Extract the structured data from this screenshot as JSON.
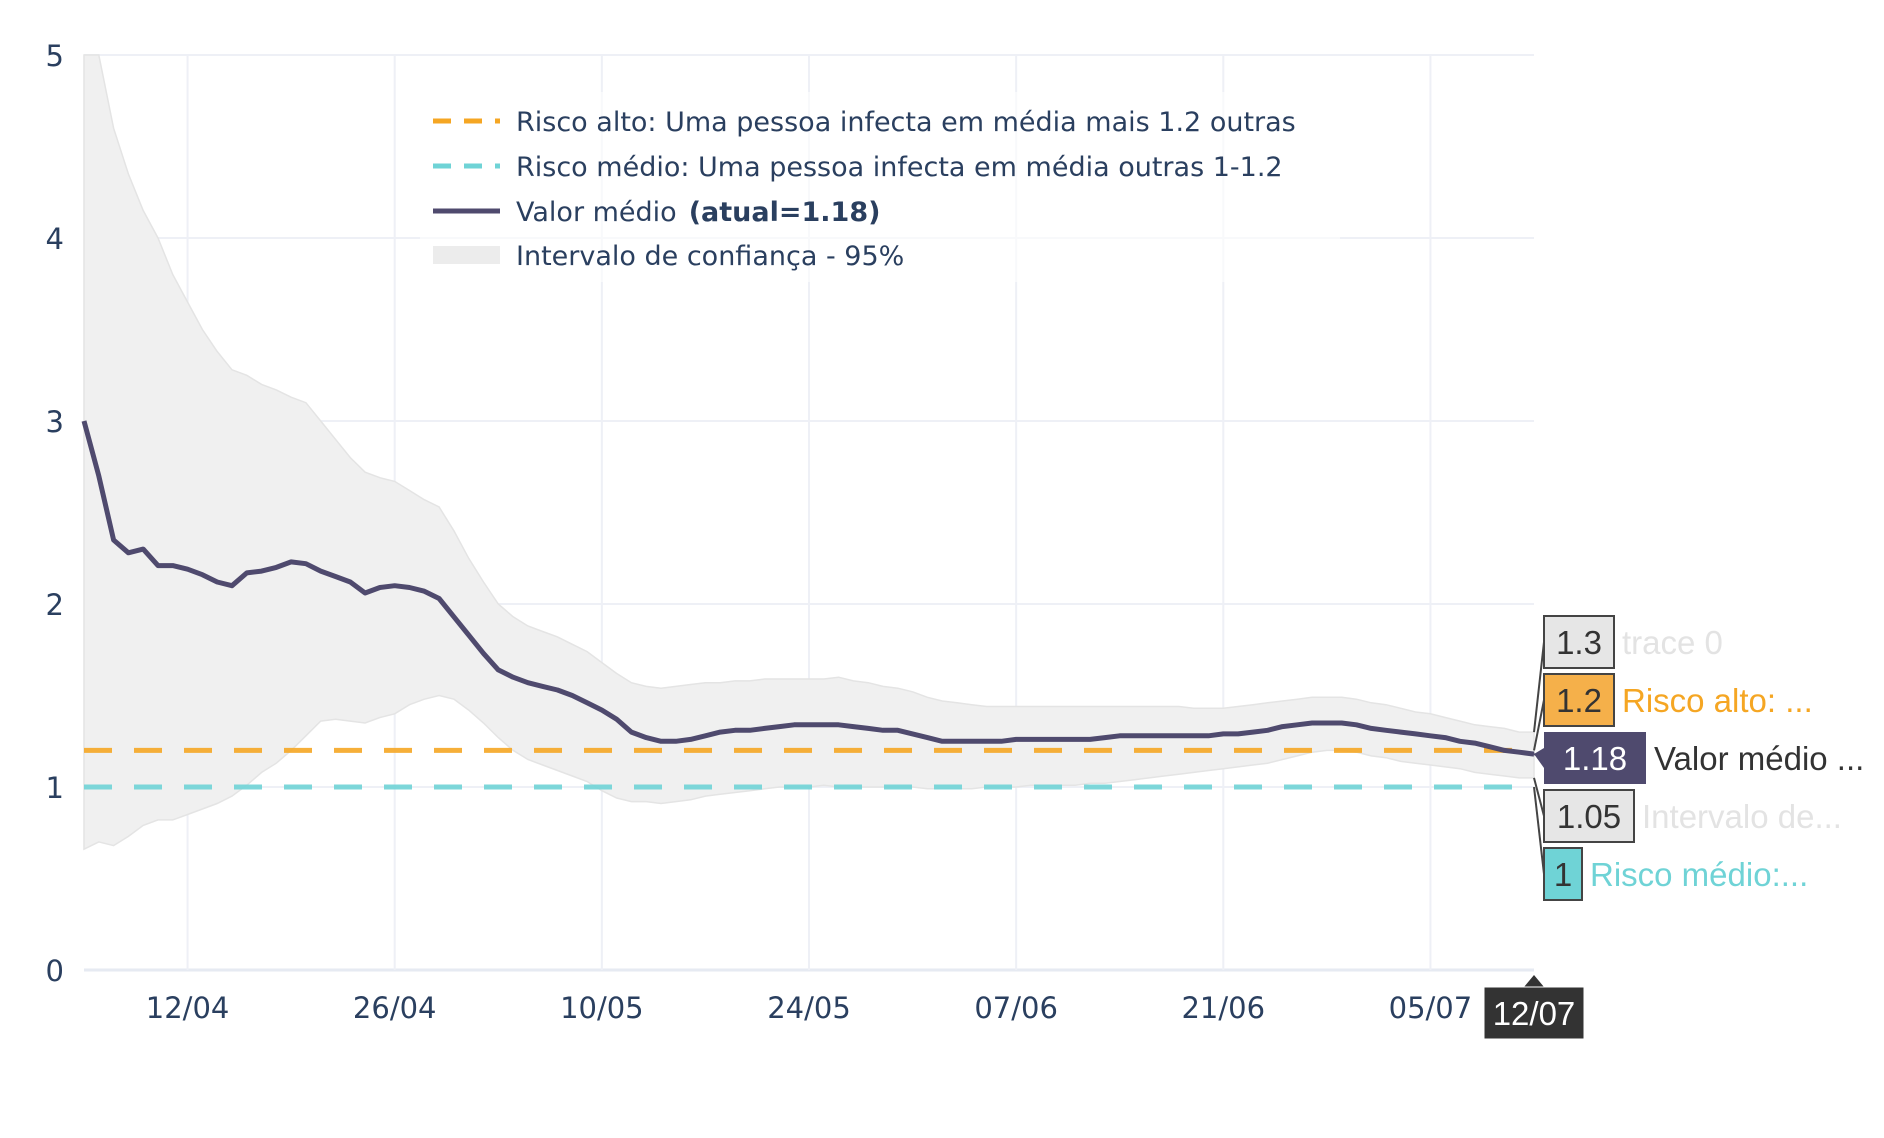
{
  "chart_data": {
    "type": "line",
    "x_ticks": [
      "12/04",
      "26/04",
      "10/05",
      "24/05",
      "07/06",
      "21/06",
      "05/07"
    ],
    "y_ticks": [
      "0",
      "1",
      "2",
      "3",
      "4",
      "5"
    ],
    "ylim": [
      0,
      5
    ],
    "x_start": "2020-04-05",
    "x_end": "2020-07-12",
    "grid": true,
    "legend_placement": "top",
    "series": [
      {
        "name": "Risco alto: Uma pessoa infecta em média mais 1.2 outras",
        "style": "dashed",
        "color": "#f5a623",
        "values": [
          [
            0,
            1.2
          ],
          [
            98,
            1.2
          ]
        ]
      },
      {
        "name": "Risco médio: Uma pessoa infecta em média outras 1-1.2",
        "style": "dashed",
        "color": "#6fd3d6",
        "values": [
          [
            0,
            1.0
          ],
          [
            98,
            1.0
          ]
        ]
      },
      {
        "name": "Valor médio",
        "name_suffix": "(atual=1.18)",
        "style": "solid",
        "color": "#4f4a6e",
        "values": [
          [
            0,
            3.0
          ],
          [
            1,
            2.7
          ],
          [
            2,
            2.35
          ],
          [
            3,
            2.28
          ],
          [
            4,
            2.3
          ],
          [
            5,
            2.21
          ],
          [
            6,
            2.21
          ],
          [
            7,
            2.19
          ],
          [
            8,
            2.16
          ],
          [
            9,
            2.12
          ],
          [
            10,
            2.1
          ],
          [
            11,
            2.17
          ],
          [
            12,
            2.18
          ],
          [
            13,
            2.2
          ],
          [
            14,
            2.23
          ],
          [
            15,
            2.22
          ],
          [
            16,
            2.18
          ],
          [
            17,
            2.15
          ],
          [
            18,
            2.12
          ],
          [
            19,
            2.06
          ],
          [
            20,
            2.09
          ],
          [
            21,
            2.1
          ],
          [
            22,
            2.09
          ],
          [
            23,
            2.07
          ],
          [
            24,
            2.03
          ],
          [
            25,
            1.93
          ],
          [
            26,
            1.83
          ],
          [
            27,
            1.73
          ],
          [
            28,
            1.64
          ],
          [
            29,
            1.6
          ],
          [
            30,
            1.57
          ],
          [
            31,
            1.55
          ],
          [
            32,
            1.53
          ],
          [
            33,
            1.5
          ],
          [
            34,
            1.46
          ],
          [
            35,
            1.42
          ],
          [
            36,
            1.37
          ],
          [
            37,
            1.3
          ],
          [
            38,
            1.27
          ],
          [
            39,
            1.25
          ],
          [
            40,
            1.25
          ],
          [
            41,
            1.26
          ],
          [
            42,
            1.28
          ],
          [
            43,
            1.3
          ],
          [
            44,
            1.31
          ],
          [
            45,
            1.31
          ],
          [
            46,
            1.32
          ],
          [
            47,
            1.33
          ],
          [
            48,
            1.34
          ],
          [
            49,
            1.34
          ],
          [
            50,
            1.34
          ],
          [
            51,
            1.34
          ],
          [
            52,
            1.33
          ],
          [
            53,
            1.32
          ],
          [
            54,
            1.31
          ],
          [
            55,
            1.31
          ],
          [
            56,
            1.29
          ],
          [
            57,
            1.27
          ],
          [
            58,
            1.25
          ],
          [
            59,
            1.25
          ],
          [
            60,
            1.25
          ],
          [
            61,
            1.25
          ],
          [
            62,
            1.25
          ],
          [
            63,
            1.26
          ],
          [
            64,
            1.26
          ],
          [
            65,
            1.26
          ],
          [
            66,
            1.26
          ],
          [
            67,
            1.26
          ],
          [
            68,
            1.26
          ],
          [
            69,
            1.27
          ],
          [
            70,
            1.28
          ],
          [
            71,
            1.28
          ],
          [
            72,
            1.28
          ],
          [
            73,
            1.28
          ],
          [
            74,
            1.28
          ],
          [
            75,
            1.28
          ],
          [
            76,
            1.28
          ],
          [
            77,
            1.29
          ],
          [
            78,
            1.29
          ],
          [
            79,
            1.3
          ],
          [
            80,
            1.31
          ],
          [
            81,
            1.33
          ],
          [
            82,
            1.34
          ],
          [
            83,
            1.35
          ],
          [
            84,
            1.35
          ],
          [
            85,
            1.35
          ],
          [
            86,
            1.34
          ],
          [
            87,
            1.32
          ],
          [
            88,
            1.31
          ],
          [
            89,
            1.3
          ],
          [
            90,
            1.29
          ],
          [
            91,
            1.28
          ],
          [
            92,
            1.27
          ],
          [
            93,
            1.25
          ],
          [
            94,
            1.24
          ],
          [
            95,
            1.22
          ],
          [
            96,
            1.2
          ],
          [
            97,
            1.19
          ],
          [
            98,
            1.18
          ]
        ]
      },
      {
        "name": "Intervalo de confiança - 95%",
        "style": "band",
        "color": "#f0f0f0",
        "upper": [
          [
            0,
            5.0
          ],
          [
            1,
            5.0
          ],
          [
            2,
            4.6
          ],
          [
            3,
            4.35
          ],
          [
            4,
            4.15
          ],
          [
            5,
            4.0
          ],
          [
            6,
            3.8
          ],
          [
            7,
            3.65
          ],
          [
            8,
            3.5
          ],
          [
            9,
            3.38
          ],
          [
            10,
            3.28
          ],
          [
            11,
            3.25
          ],
          [
            12,
            3.2
          ],
          [
            13,
            3.17
          ],
          [
            14,
            3.13
          ],
          [
            15,
            3.1
          ],
          [
            16,
            3.0
          ],
          [
            17,
            2.9
          ],
          [
            18,
            2.8
          ],
          [
            19,
            2.72
          ],
          [
            20,
            2.69
          ],
          [
            21,
            2.67
          ],
          [
            22,
            2.62
          ],
          [
            23,
            2.57
          ],
          [
            24,
            2.53
          ],
          [
            25,
            2.4
          ],
          [
            26,
            2.25
          ],
          [
            27,
            2.12
          ],
          [
            28,
            2.0
          ],
          [
            29,
            1.93
          ],
          [
            30,
            1.88
          ],
          [
            31,
            1.85
          ],
          [
            32,
            1.82
          ],
          [
            33,
            1.78
          ],
          [
            34,
            1.74
          ],
          [
            35,
            1.68
          ],
          [
            36,
            1.62
          ],
          [
            37,
            1.57
          ],
          [
            38,
            1.55
          ],
          [
            39,
            1.54
          ],
          [
            40,
            1.55
          ],
          [
            41,
            1.56
          ],
          [
            42,
            1.57
          ],
          [
            43,
            1.57
          ],
          [
            44,
            1.58
          ],
          [
            45,
            1.58
          ],
          [
            46,
            1.59
          ],
          [
            47,
            1.59
          ],
          [
            48,
            1.59
          ],
          [
            49,
            1.59
          ],
          [
            50,
            1.59
          ],
          [
            51,
            1.6
          ],
          [
            52,
            1.58
          ],
          [
            53,
            1.57
          ],
          [
            54,
            1.55
          ],
          [
            55,
            1.54
          ],
          [
            56,
            1.52
          ],
          [
            57,
            1.49
          ],
          [
            58,
            1.47
          ],
          [
            59,
            1.46
          ],
          [
            60,
            1.45
          ],
          [
            61,
            1.44
          ],
          [
            62,
            1.44
          ],
          [
            63,
            1.44
          ],
          [
            64,
            1.44
          ],
          [
            65,
            1.44
          ],
          [
            66,
            1.44
          ],
          [
            67,
            1.44
          ],
          [
            68,
            1.44
          ],
          [
            69,
            1.44
          ],
          [
            70,
            1.44
          ],
          [
            71,
            1.44
          ],
          [
            72,
            1.44
          ],
          [
            73,
            1.44
          ],
          [
            74,
            1.44
          ],
          [
            75,
            1.43
          ],
          [
            76,
            1.43
          ],
          [
            77,
            1.43
          ],
          [
            78,
            1.44
          ],
          [
            79,
            1.45
          ],
          [
            80,
            1.46
          ],
          [
            81,
            1.47
          ],
          [
            82,
            1.48
          ],
          [
            83,
            1.49
          ],
          [
            84,
            1.49
          ],
          [
            85,
            1.49
          ],
          [
            86,
            1.48
          ],
          [
            87,
            1.46
          ],
          [
            88,
            1.45
          ],
          [
            89,
            1.43
          ],
          [
            90,
            1.41
          ],
          [
            91,
            1.4
          ],
          [
            92,
            1.38
          ],
          [
            93,
            1.36
          ],
          [
            94,
            1.34
          ],
          [
            95,
            1.33
          ],
          [
            96,
            1.32
          ],
          [
            97,
            1.3
          ],
          [
            98,
            1.3
          ]
        ],
        "lower": [
          [
            0,
            0.66
          ],
          [
            1,
            0.7
          ],
          [
            2,
            0.68
          ],
          [
            3,
            0.73
          ],
          [
            4,
            0.79
          ],
          [
            5,
            0.82
          ],
          [
            6,
            0.82
          ],
          [
            7,
            0.85
          ],
          [
            8,
            0.88
          ],
          [
            9,
            0.91
          ],
          [
            10,
            0.95
          ],
          [
            11,
            1.01
          ],
          [
            12,
            1.08
          ],
          [
            13,
            1.13
          ],
          [
            14,
            1.2
          ],
          [
            15,
            1.28
          ],
          [
            16,
            1.36
          ],
          [
            17,
            1.37
          ],
          [
            18,
            1.36
          ],
          [
            19,
            1.35
          ],
          [
            20,
            1.38
          ],
          [
            21,
            1.4
          ],
          [
            22,
            1.45
          ],
          [
            23,
            1.48
          ],
          [
            24,
            1.5
          ],
          [
            25,
            1.48
          ],
          [
            26,
            1.42
          ],
          [
            27,
            1.35
          ],
          [
            28,
            1.27
          ],
          [
            29,
            1.2
          ],
          [
            30,
            1.15
          ],
          [
            31,
            1.12
          ],
          [
            32,
            1.09
          ],
          [
            33,
            1.06
          ],
          [
            34,
            1.03
          ],
          [
            35,
            0.98
          ],
          [
            36,
            0.94
          ],
          [
            37,
            0.92
          ],
          [
            38,
            0.92
          ],
          [
            39,
            0.91
          ],
          [
            40,
            0.92
          ],
          [
            41,
            0.93
          ],
          [
            42,
            0.95
          ],
          [
            43,
            0.96
          ],
          [
            44,
            0.97
          ],
          [
            45,
            0.98
          ],
          [
            46,
            0.99
          ],
          [
            47,
            1.0
          ],
          [
            48,
            1.0
          ],
          [
            49,
            1.0
          ],
          [
            50,
            1.01
          ],
          [
            51,
            1.0
          ],
          [
            52,
            1.0
          ],
          [
            53,
            1.0
          ],
          [
            54,
            1.0
          ],
          [
            55,
            1.0
          ],
          [
            56,
            1.0
          ],
          [
            57,
            0.99
          ],
          [
            58,
            0.99
          ],
          [
            59,
            0.99
          ],
          [
            60,
            0.99
          ],
          [
            61,
            1.0
          ],
          [
            62,
            1.0
          ],
          [
            63,
            1.0
          ],
          [
            64,
            1.01
          ],
          [
            65,
            1.01
          ],
          [
            66,
            1.01
          ],
          [
            67,
            1.01
          ],
          [
            68,
            1.02
          ],
          [
            69,
            1.02
          ],
          [
            70,
            1.03
          ],
          [
            71,
            1.04
          ],
          [
            72,
            1.05
          ],
          [
            73,
            1.06
          ],
          [
            74,
            1.07
          ],
          [
            75,
            1.08
          ],
          [
            76,
            1.09
          ],
          [
            77,
            1.1
          ],
          [
            78,
            1.11
          ],
          [
            79,
            1.12
          ],
          [
            80,
            1.13
          ],
          [
            81,
            1.15
          ],
          [
            82,
            1.17
          ],
          [
            83,
            1.19
          ],
          [
            84,
            1.2
          ],
          [
            85,
            1.2
          ],
          [
            86,
            1.19
          ],
          [
            87,
            1.17
          ],
          [
            88,
            1.16
          ],
          [
            89,
            1.14
          ],
          [
            90,
            1.13
          ],
          [
            91,
            1.12
          ],
          [
            92,
            1.11
          ],
          [
            93,
            1.1
          ],
          [
            94,
            1.08
          ],
          [
            95,
            1.07
          ],
          [
            96,
            1.06
          ],
          [
            97,
            1.05
          ],
          [
            98,
            1.05
          ]
        ]
      }
    ],
    "hover": {
      "x_label": "12/07",
      "items": [
        {
          "value": "1.3",
          "label": "trace 0",
          "bg": "#e6e6e6",
          "text_color": "#333333",
          "label_color": "#e3e3e3",
          "y": 1.3,
          "bordered": true
        },
        {
          "value": "1.2",
          "label": "Risco alto: ...",
          "bg": "#f5b04a",
          "text_color": "#333333",
          "label_color": "#f5a623",
          "y": 1.2,
          "bordered": true
        },
        {
          "value": "1.18",
          "label": "Valor médio ...",
          "bg": "#4f4a6e",
          "text_color": "#ffffff",
          "label_color": "#333333",
          "y": 1.18,
          "bordered": false,
          "pointer": true
        },
        {
          "value": "1.05",
          "label": "Intervalo de...",
          "bg": "#e6e6e6",
          "text_color": "#333333",
          "label_color": "#e3e3e3",
          "y": 1.05,
          "bordered": true
        },
        {
          "value": "1",
          "label": "Risco médio:...",
          "bg": "#6fd3d6",
          "text_color": "#333333",
          "label_color": "#6fd3d6",
          "y": 1.0,
          "bordered": true
        }
      ]
    }
  }
}
